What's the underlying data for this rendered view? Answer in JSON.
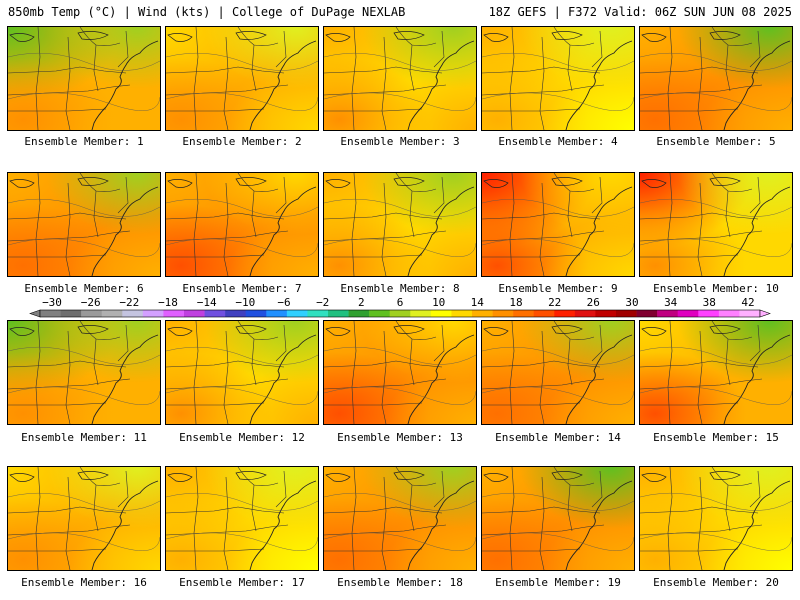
{
  "header": {
    "left": "850mb Temp (°C) | Wind (kts) | College of DuPage NEXLAB",
    "right": "18Z GEFS | F372 Valid: 06Z SUN JUN 08 2025"
  },
  "colorbar": {
    "labels": [
      "−30",
      "−26",
      "−22",
      "−18",
      "−14",
      "−10",
      "−6",
      "−2",
      "2",
      "6",
      "10",
      "14",
      "18",
      "22",
      "26",
      "30",
      "34",
      "38",
      "42"
    ],
    "colors": [
      "#808080",
      "#6e6e6e",
      "#9a9a9a",
      "#b0b0b0",
      "#c4c4e0",
      "#d3a0ff",
      "#e060ff",
      "#c040e0",
      "#7050e0",
      "#4040c0",
      "#2050e0",
      "#2090ff",
      "#30d0ff",
      "#30e0c0",
      "#20c080",
      "#30a030",
      "#60c020",
      "#a0d020",
      "#e0f020",
      "#ffff00",
      "#ffd800",
      "#ffb000",
      "#ff9000",
      "#ff7000",
      "#ff5000",
      "#ff2000",
      "#e01010",
      "#c00000",
      "#a00000",
      "#800030",
      "#c00080",
      "#e000c0",
      "#ff40ff",
      "#ff80ff",
      "#ffb0ff"
    ]
  },
  "members": [
    {
      "label": "Ensemble Member: 1",
      "theme": "green"
    },
    {
      "label": "Ensemble Member: 2",
      "theme": "yellow-orange"
    },
    {
      "label": "Ensemble Member: 3",
      "theme": "yellow-green"
    },
    {
      "label": "Ensemble Member: 4",
      "theme": "yellow"
    },
    {
      "label": "Ensemble Member: 5",
      "theme": "orange-green"
    },
    {
      "label": "Ensemble Member: 6",
      "theme": "orange"
    },
    {
      "label": "Ensemble Member: 7",
      "theme": "orange-red"
    },
    {
      "label": "Ensemble Member: 8",
      "theme": "yellow-green"
    },
    {
      "label": "Ensemble Member: 9",
      "theme": "red"
    },
    {
      "label": "Ensemble Member: 10",
      "theme": "red-yellow"
    },
    {
      "label": "Ensemble Member: 11",
      "theme": "green"
    },
    {
      "label": "Ensemble Member: 12",
      "theme": "yellow-green"
    },
    {
      "label": "Ensemble Member: 13",
      "theme": "orange-red"
    },
    {
      "label": "Ensemble Member: 14",
      "theme": "orange"
    },
    {
      "label": "Ensemble Member: 15",
      "theme": "green-orange"
    },
    {
      "label": "Ensemble Member: 16",
      "theme": "yellow-orange"
    },
    {
      "label": "Ensemble Member: 17",
      "theme": "yellow"
    },
    {
      "label": "Ensemble Member: 18",
      "theme": "orange"
    },
    {
      "label": "Ensemble Member: 19",
      "theme": "orange-green"
    },
    {
      "label": "Ensemble Member: 20",
      "theme": "yellow"
    }
  ]
}
